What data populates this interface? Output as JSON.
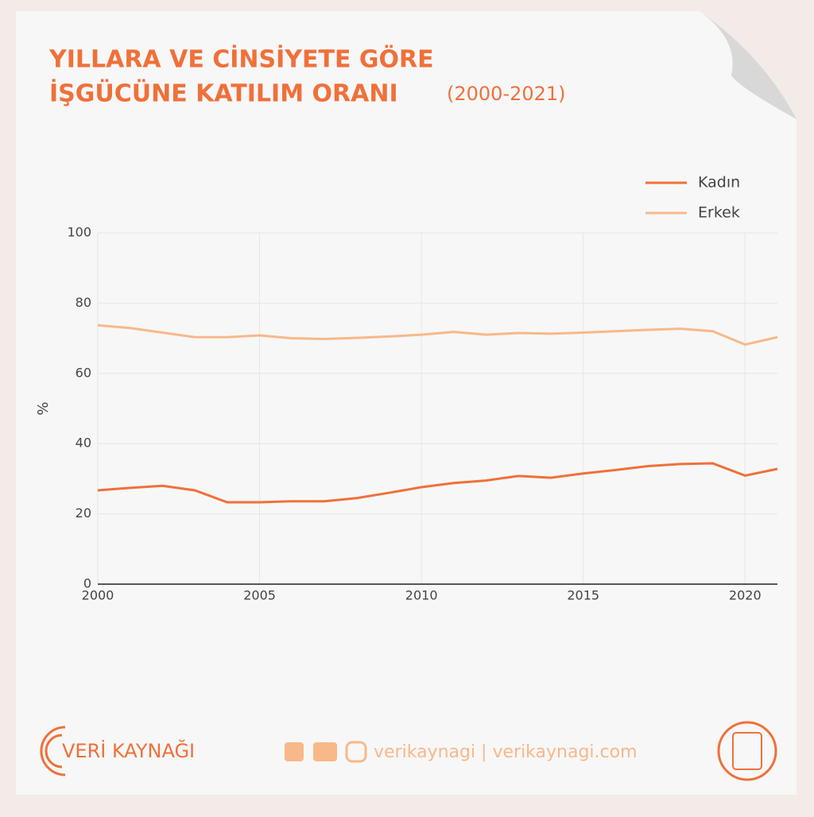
{
  "header": {
    "title_line1": "YILLARA VE CİNSİYETE GÖRE",
    "title_line2": "İŞGÜCÜNE KATILIM ORANI",
    "years": "(2000-2021)"
  },
  "chart_data": {
    "type": "line",
    "ylabel": "%",
    "x": [
      2000,
      2001,
      2002,
      2003,
      2004,
      2005,
      2006,
      2007,
      2008,
      2009,
      2010,
      2011,
      2012,
      2013,
      2014,
      2015,
      2016,
      2017,
      2018,
      2019,
      2020,
      2021
    ],
    "series": [
      {
        "name": "Kadın",
        "color": "#f0703a",
        "values": [
          26.7,
          27.4,
          28.0,
          26.7,
          23.3,
          23.3,
          23.6,
          23.6,
          24.5,
          26.0,
          27.6,
          28.8,
          29.5,
          30.8,
          30.3,
          31.5,
          32.5,
          33.6,
          34.2,
          34.4,
          30.9,
          32.8
        ]
      },
      {
        "name": "Erkek",
        "color": "#f8b88a",
        "values": [
          73.7,
          72.9,
          71.6,
          70.3,
          70.3,
          70.8,
          70.0,
          69.8,
          70.1,
          70.5,
          71.0,
          71.8,
          71.0,
          71.5,
          71.3,
          71.6,
          72.0,
          72.4,
          72.7,
          72.0,
          68.2,
          70.3
        ]
      }
    ],
    "xlim": [
      2000,
      2021
    ],
    "xticks": [
      2000,
      2005,
      2010,
      2015,
      2020
    ],
    "ylim": [
      0,
      100
    ],
    "yticks": [
      0,
      20,
      40,
      60,
      80,
      100
    ],
    "grid": true,
    "legend": "top-right"
  },
  "footer": {
    "brand": "VERİ KAYNAĞI",
    "social": "verikaynagi | verikaynagi.com"
  }
}
